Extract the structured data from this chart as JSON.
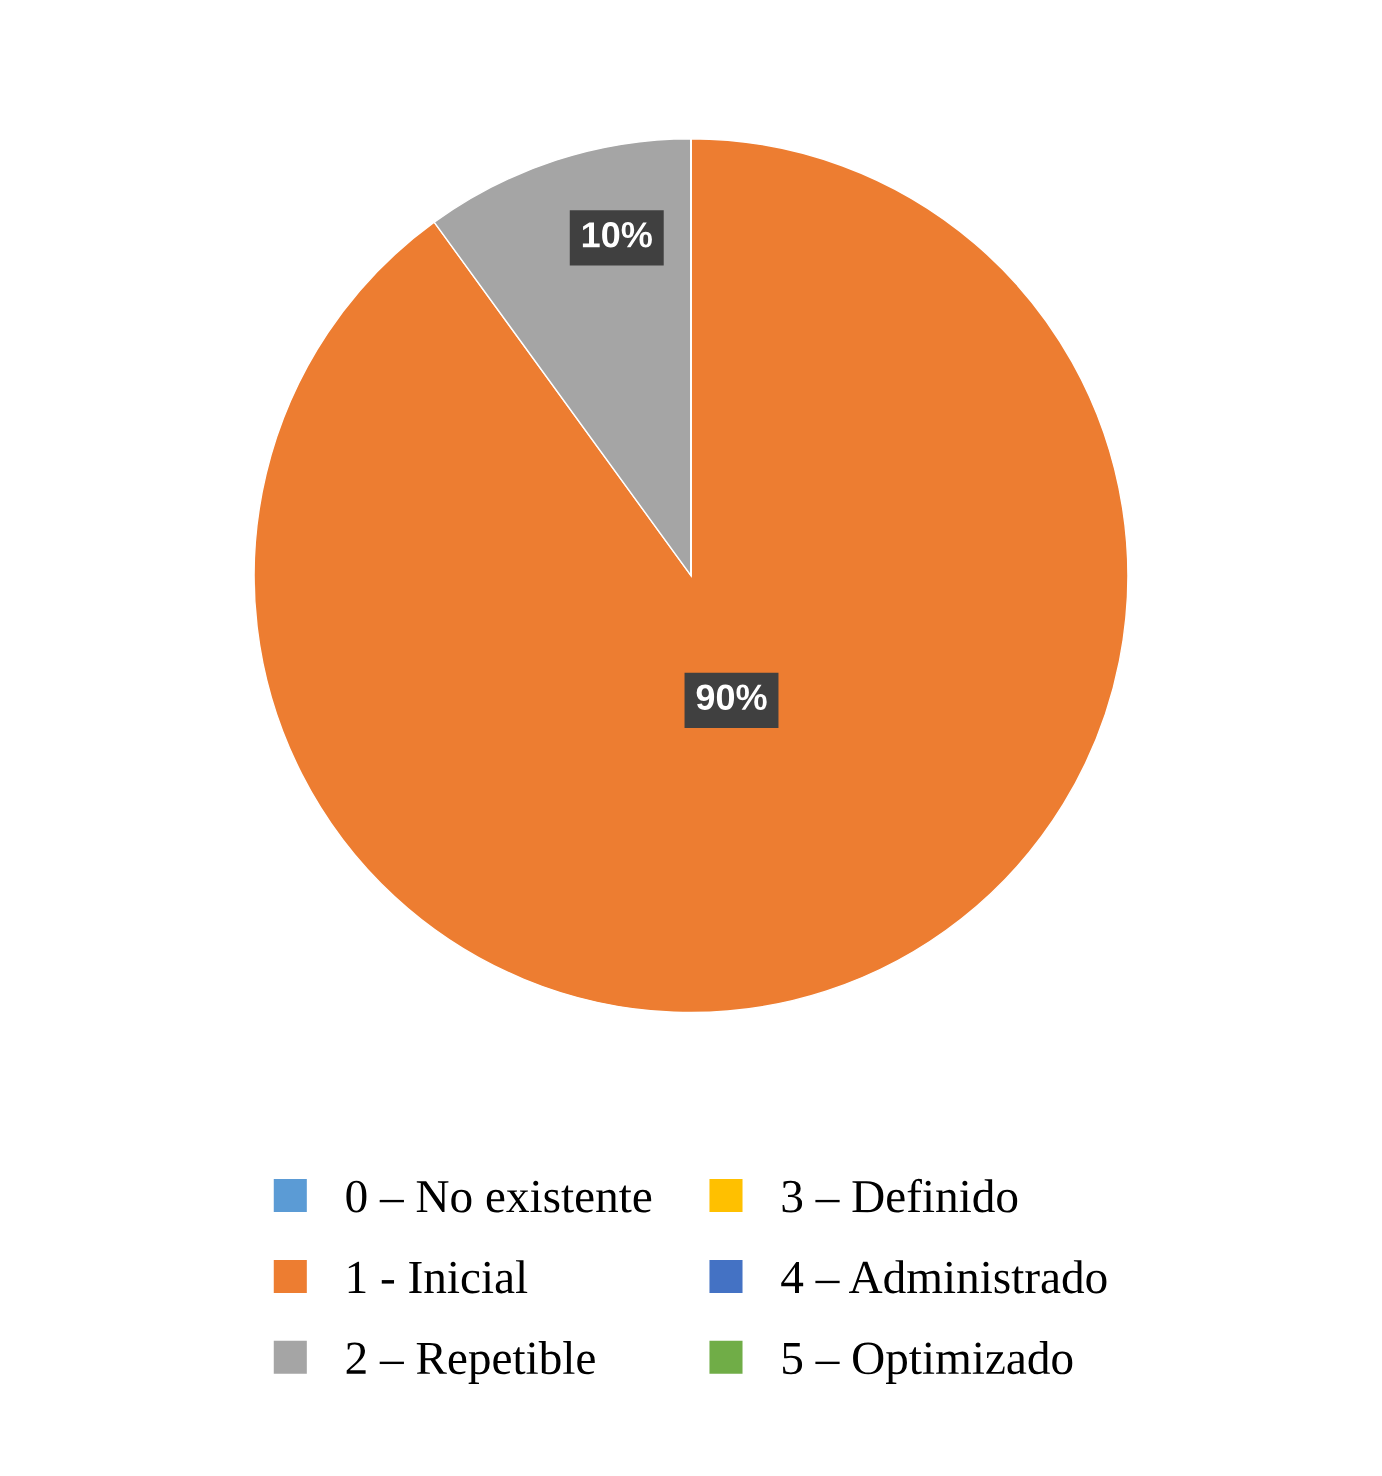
{
  "chart_data": {
    "type": "pie",
    "categories": [
      "0 – No existente",
      "1 - Inicial",
      "2 – Repetible",
      "3 – Definido",
      "4 – Administrado",
      "5 – Optimizado"
    ],
    "values": [
      0,
      90,
      10,
      0,
      0,
      0
    ],
    "colors": [
      "#5b9bd5",
      "#ed7d31",
      "#a5a5a5",
      "#ffc000",
      "#4472c4",
      "#70ad47"
    ],
    "value_labels": [
      null,
      "90%",
      "10%",
      null,
      null,
      null
    ],
    "legend": "bottom"
  }
}
